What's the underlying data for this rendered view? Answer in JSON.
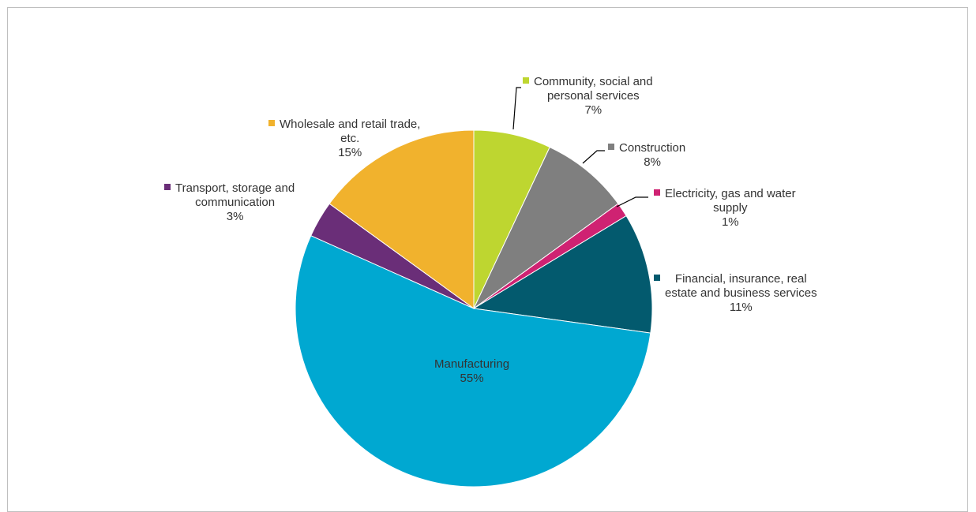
{
  "chart_data": {
    "type": "pie",
    "title": "",
    "start_angle_deg": 0,
    "direction": "clockwise",
    "slices": [
      {
        "label_lines": [
          "Community, social and",
          "personal services"
        ],
        "pct_label": "7%",
        "value": 7,
        "color": "#bed630"
      },
      {
        "label_lines": [
          "Construction"
        ],
        "pct_label": "8%",
        "value": 8,
        "color": "#7f7f7f"
      },
      {
        "label_lines": [
          "Electricity, gas and water",
          "supply"
        ],
        "pct_label": "1%",
        "value": 1.3,
        "color": "#cf2272"
      },
      {
        "label_lines": [
          "Financial, insurance, real",
          "estate and business services"
        ],
        "pct_label": "11%",
        "value": 10.9,
        "color": "#035a6e"
      },
      {
        "label_lines": [
          "Manufacturing"
        ],
        "pct_label": "55%",
        "value": 54.5,
        "color": "#00a8d1"
      },
      {
        "label_lines": [
          "Transport, storage and",
          "communication"
        ],
        "pct_label": "3%",
        "value": 3.3,
        "color": "#6a2e78"
      },
      {
        "label_lines": [
          "Wholesale and retail trade,",
          "etc."
        ],
        "pct_label": "15%",
        "value": 15,
        "color": "#f1b22d"
      }
    ]
  }
}
